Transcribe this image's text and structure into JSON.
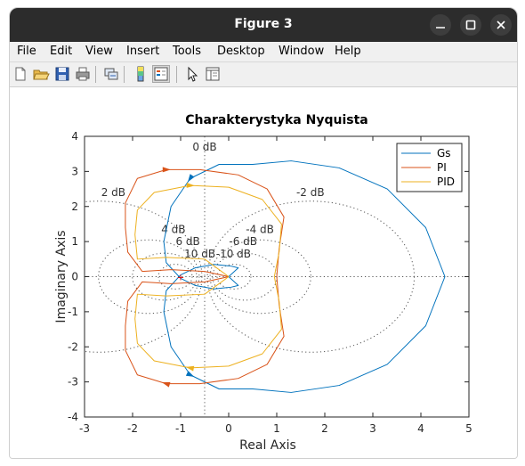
{
  "window": {
    "title": "Figure 3",
    "controls": {
      "minimize": "–",
      "maximize": "□",
      "close": "×"
    }
  },
  "menubar": {
    "items": [
      "File",
      "Edit",
      "View",
      "Insert",
      "Tools",
      "Desktop",
      "Window",
      "Help"
    ]
  },
  "toolbar": {
    "icons": [
      "new-figure-icon",
      "open-file-icon",
      "save-icon",
      "print-icon",
      "link-plot-icon",
      "colorbar-icon",
      "legend-icon",
      "pointer-icon",
      "property-inspector-icon"
    ]
  },
  "chart_data": {
    "type": "line",
    "title": "Charakterystyka Nyquista",
    "xlabel": "Real Axis",
    "ylabel": "Imaginary Axis",
    "xlim": [
      -3,
      5
    ],
    "ylim": [
      -4,
      4
    ],
    "xticks": [
      "-3",
      "-2",
      "-1",
      "0",
      "1",
      "2",
      "3",
      "4",
      "5"
    ],
    "yticks": [
      "4",
      "3",
      "2",
      "1",
      "0",
      "-1",
      "-2",
      "-3",
      "-4"
    ],
    "grid_db_labels": [
      "0 dB",
      "2 dB",
      "-2 dB",
      "4 dB",
      "-4 dB",
      "6 dB",
      "-6 dB",
      "10 dB",
      "-10 dB"
    ],
    "legend_position": "top-right",
    "series": [
      {
        "name": "Gs",
        "color": "#0072bd",
        "points": [
          [
            0,
            0
          ],
          [
            0.2,
            0.25
          ],
          [
            0.05,
            0.3
          ],
          [
            -0.3,
            0.35
          ],
          [
            -0.7,
            0.25
          ],
          [
            -1.0,
            0.05
          ],
          [
            -1.3,
            -0.4
          ],
          [
            -1.35,
            -1.0
          ],
          [
            -1.2,
            -2.0
          ],
          [
            -0.8,
            -2.8
          ],
          [
            -0.2,
            -3.2
          ],
          [
            0.5,
            -3.2
          ],
          [
            1.3,
            -3.3
          ],
          [
            2.3,
            -3.1
          ],
          [
            3.3,
            -2.5
          ],
          [
            4.1,
            -1.4
          ],
          [
            4.5,
            0
          ],
          [
            4.1,
            1.4
          ],
          [
            3.3,
            2.5
          ],
          [
            2.3,
            3.1
          ],
          [
            1.3,
            3.3
          ],
          [
            0.5,
            3.2
          ],
          [
            -0.2,
            3.2
          ],
          [
            -0.8,
            2.8
          ],
          [
            -1.2,
            2.0
          ],
          [
            -1.35,
            1.0
          ],
          [
            -1.3,
            0.4
          ],
          [
            -1.0,
            -0.05
          ],
          [
            -0.7,
            -0.25
          ],
          [
            -0.3,
            -0.35
          ],
          [
            0.05,
            -0.3
          ],
          [
            0.2,
            -0.25
          ],
          [
            0,
            0
          ]
        ]
      },
      {
        "name": "PI",
        "color": "#d95319",
        "points": [
          [
            0,
            0
          ],
          [
            -0.5,
            0.15
          ],
          [
            -1.2,
            0.2
          ],
          [
            -1.8,
            0.15
          ],
          [
            -2.1,
            0.7
          ],
          [
            -2.15,
            1.4
          ],
          [
            -2.15,
            2.1
          ],
          [
            -1.9,
            2.8
          ],
          [
            -1.3,
            3.05
          ],
          [
            -0.6,
            3.05
          ],
          [
            0.2,
            2.9
          ],
          [
            0.8,
            2.5
          ],
          [
            1.15,
            1.7
          ],
          [
            1.05,
            0.8
          ],
          [
            1.0,
            0
          ],
          [
            1.05,
            -0.8
          ],
          [
            1.15,
            -1.7
          ],
          [
            0.8,
            -2.5
          ],
          [
            0.2,
            -2.9
          ],
          [
            -0.6,
            -3.05
          ],
          [
            -1.3,
            -3.05
          ],
          [
            -1.9,
            -2.8
          ],
          [
            -2.15,
            -2.1
          ],
          [
            -2.15,
            -1.4
          ],
          [
            -2.1,
            -0.7
          ],
          [
            -1.8,
            -0.15
          ],
          [
            -1.2,
            -0.2
          ],
          [
            -0.5,
            -0.15
          ],
          [
            0,
            0
          ]
        ]
      },
      {
        "name": "PID",
        "color": "#edb120",
        "points": [
          [
            0,
            0
          ],
          [
            -0.5,
            0.5
          ],
          [
            -1.3,
            0.55
          ],
          [
            -1.9,
            0.5
          ],
          [
            -1.95,
            1.2
          ],
          [
            -1.9,
            1.9
          ],
          [
            -1.55,
            2.4
          ],
          [
            -0.8,
            2.6
          ],
          [
            0,
            2.55
          ],
          [
            0.7,
            2.2
          ],
          [
            1.1,
            1.5
          ],
          [
            1.05,
            0.7
          ],
          [
            0.95,
            0
          ],
          [
            1.05,
            -0.7
          ],
          [
            1.1,
            -1.5
          ],
          [
            0.7,
            -2.2
          ],
          [
            0,
            -2.55
          ],
          [
            -0.8,
            -2.6
          ],
          [
            -1.55,
            -2.4
          ],
          [
            -1.9,
            -1.9
          ],
          [
            -1.95,
            -1.2
          ],
          [
            -1.9,
            -0.5
          ],
          [
            -1.3,
            -0.55
          ],
          [
            -0.5,
            -0.5
          ],
          [
            0,
            0
          ]
        ]
      }
    ]
  }
}
